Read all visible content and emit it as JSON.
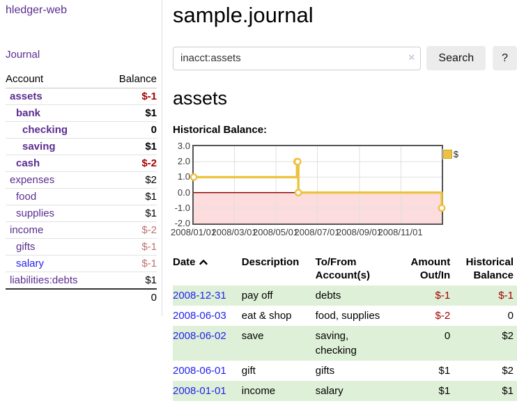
{
  "sidebar": {
    "brand": "hledger-web",
    "journal_link": "Journal",
    "accounts_table": {
      "headers": [
        "Account",
        "Balance"
      ],
      "rows": [
        {
          "account": "assets",
          "balance": "$-1",
          "level": 1,
          "bold": true,
          "negative": true
        },
        {
          "account": "bank",
          "balance": "$1",
          "level": 2,
          "bold": true
        },
        {
          "account": "checking",
          "balance": "0",
          "level": 3,
          "bold": true
        },
        {
          "account": "saving",
          "balance": "$1",
          "level": 3,
          "bold": true
        },
        {
          "account": "cash",
          "balance": "$-2",
          "level": 2,
          "bold": true,
          "negative": true
        },
        {
          "account": "expenses",
          "balance": "$2",
          "level": 1
        },
        {
          "account": "food",
          "balance": "$1",
          "level": 2
        },
        {
          "account": "supplies",
          "balance": "$1",
          "level": 2
        },
        {
          "account": "income",
          "balance": "$-2",
          "level": 1,
          "negative": true,
          "dim": true
        },
        {
          "account": "gifts",
          "balance": "$-1",
          "level": 2,
          "negative": true,
          "dim": true
        },
        {
          "account": "salary",
          "balance": "$-1",
          "level": 2,
          "negative": true,
          "dim": true,
          "unvisited": true
        },
        {
          "account": "liabilities:debts",
          "balance": "$1",
          "level": 1
        }
      ],
      "total": "0"
    }
  },
  "header": {
    "title": "sample.journal"
  },
  "search": {
    "value": "inacct:assets",
    "clear_icon": "×",
    "button": "Search",
    "help_button": "?"
  },
  "account_page": {
    "heading": "assets",
    "chart_label": "Historical Balance:"
  },
  "chart_data": {
    "type": "line",
    "title": "Historical Balance:",
    "style": "step-after",
    "series": [
      {
        "name": "$",
        "color": "#edc240",
        "points": [
          [
            "2008-01-01",
            1
          ],
          [
            "2008-06-01",
            2
          ],
          [
            "2008-06-02",
            2
          ],
          [
            "2008-06-03",
            0
          ],
          [
            "2008-12-31",
            -1
          ]
        ]
      }
    ],
    "xlim": [
      "2008-01-01",
      "2008-12-31"
    ],
    "ylim": [
      -2,
      3
    ],
    "yticks": [
      {
        "v": 3,
        "label": "3.0"
      },
      {
        "v": 2,
        "label": "2.0"
      },
      {
        "v": 1,
        "label": "1.0"
      },
      {
        "v": 0,
        "label": "0.0"
      },
      {
        "v": -1,
        "label": "-1.0"
      },
      {
        "v": -2,
        "label": "-2.0"
      }
    ],
    "xticks": [
      {
        "date": "2008-01-01",
        "label": "2008/01/01"
      },
      {
        "date": "2008-03-01",
        "label": "2008/03/01"
      },
      {
        "date": "2008-05-01",
        "label": "2008/05/01"
      },
      {
        "date": "2008-07-01",
        "label": "2008/07/01"
      },
      {
        "date": "2008-09-01",
        "label": "2008/09/01"
      },
      {
        "date": "2008-11-01",
        "label": "2008/11/01"
      }
    ],
    "legend_position": "top-right",
    "grid": true,
    "line_color": "#edc240",
    "zero_line_color": "#8b0000",
    "negative_region_color": "#fcdcdc",
    "grid_color": "#e0e0e0",
    "border_color": "#545454"
  },
  "register": {
    "columns": [
      {
        "label": "Date",
        "align": "left",
        "sorted": "asc"
      },
      {
        "label": "Description",
        "align": "left"
      },
      {
        "label": "To/From\nAccount(s)",
        "align": "left"
      },
      {
        "label": "Amount\nOut/In",
        "align": "right"
      },
      {
        "label": "Historical\nBalance",
        "align": "right"
      }
    ],
    "rows": [
      {
        "date": "2008-12-31",
        "description": "pay off",
        "accounts": "debts",
        "amount": "$-1",
        "balance": "$-1"
      },
      {
        "date": "2008-06-03",
        "description": "eat & shop",
        "accounts": "food, supplies",
        "amount": "$-2",
        "balance": "0"
      },
      {
        "date": "2008-06-02",
        "description": "save",
        "accounts": "saving,\nchecking",
        "amount": "0",
        "balance": "$2"
      },
      {
        "date": "2008-06-01",
        "description": "gift",
        "accounts": "gifts",
        "amount": "$1",
        "balance": "$2"
      },
      {
        "date": "2008-01-01",
        "description": "income",
        "accounts": "salary",
        "amount": "$1",
        "balance": "$1"
      }
    ]
  }
}
